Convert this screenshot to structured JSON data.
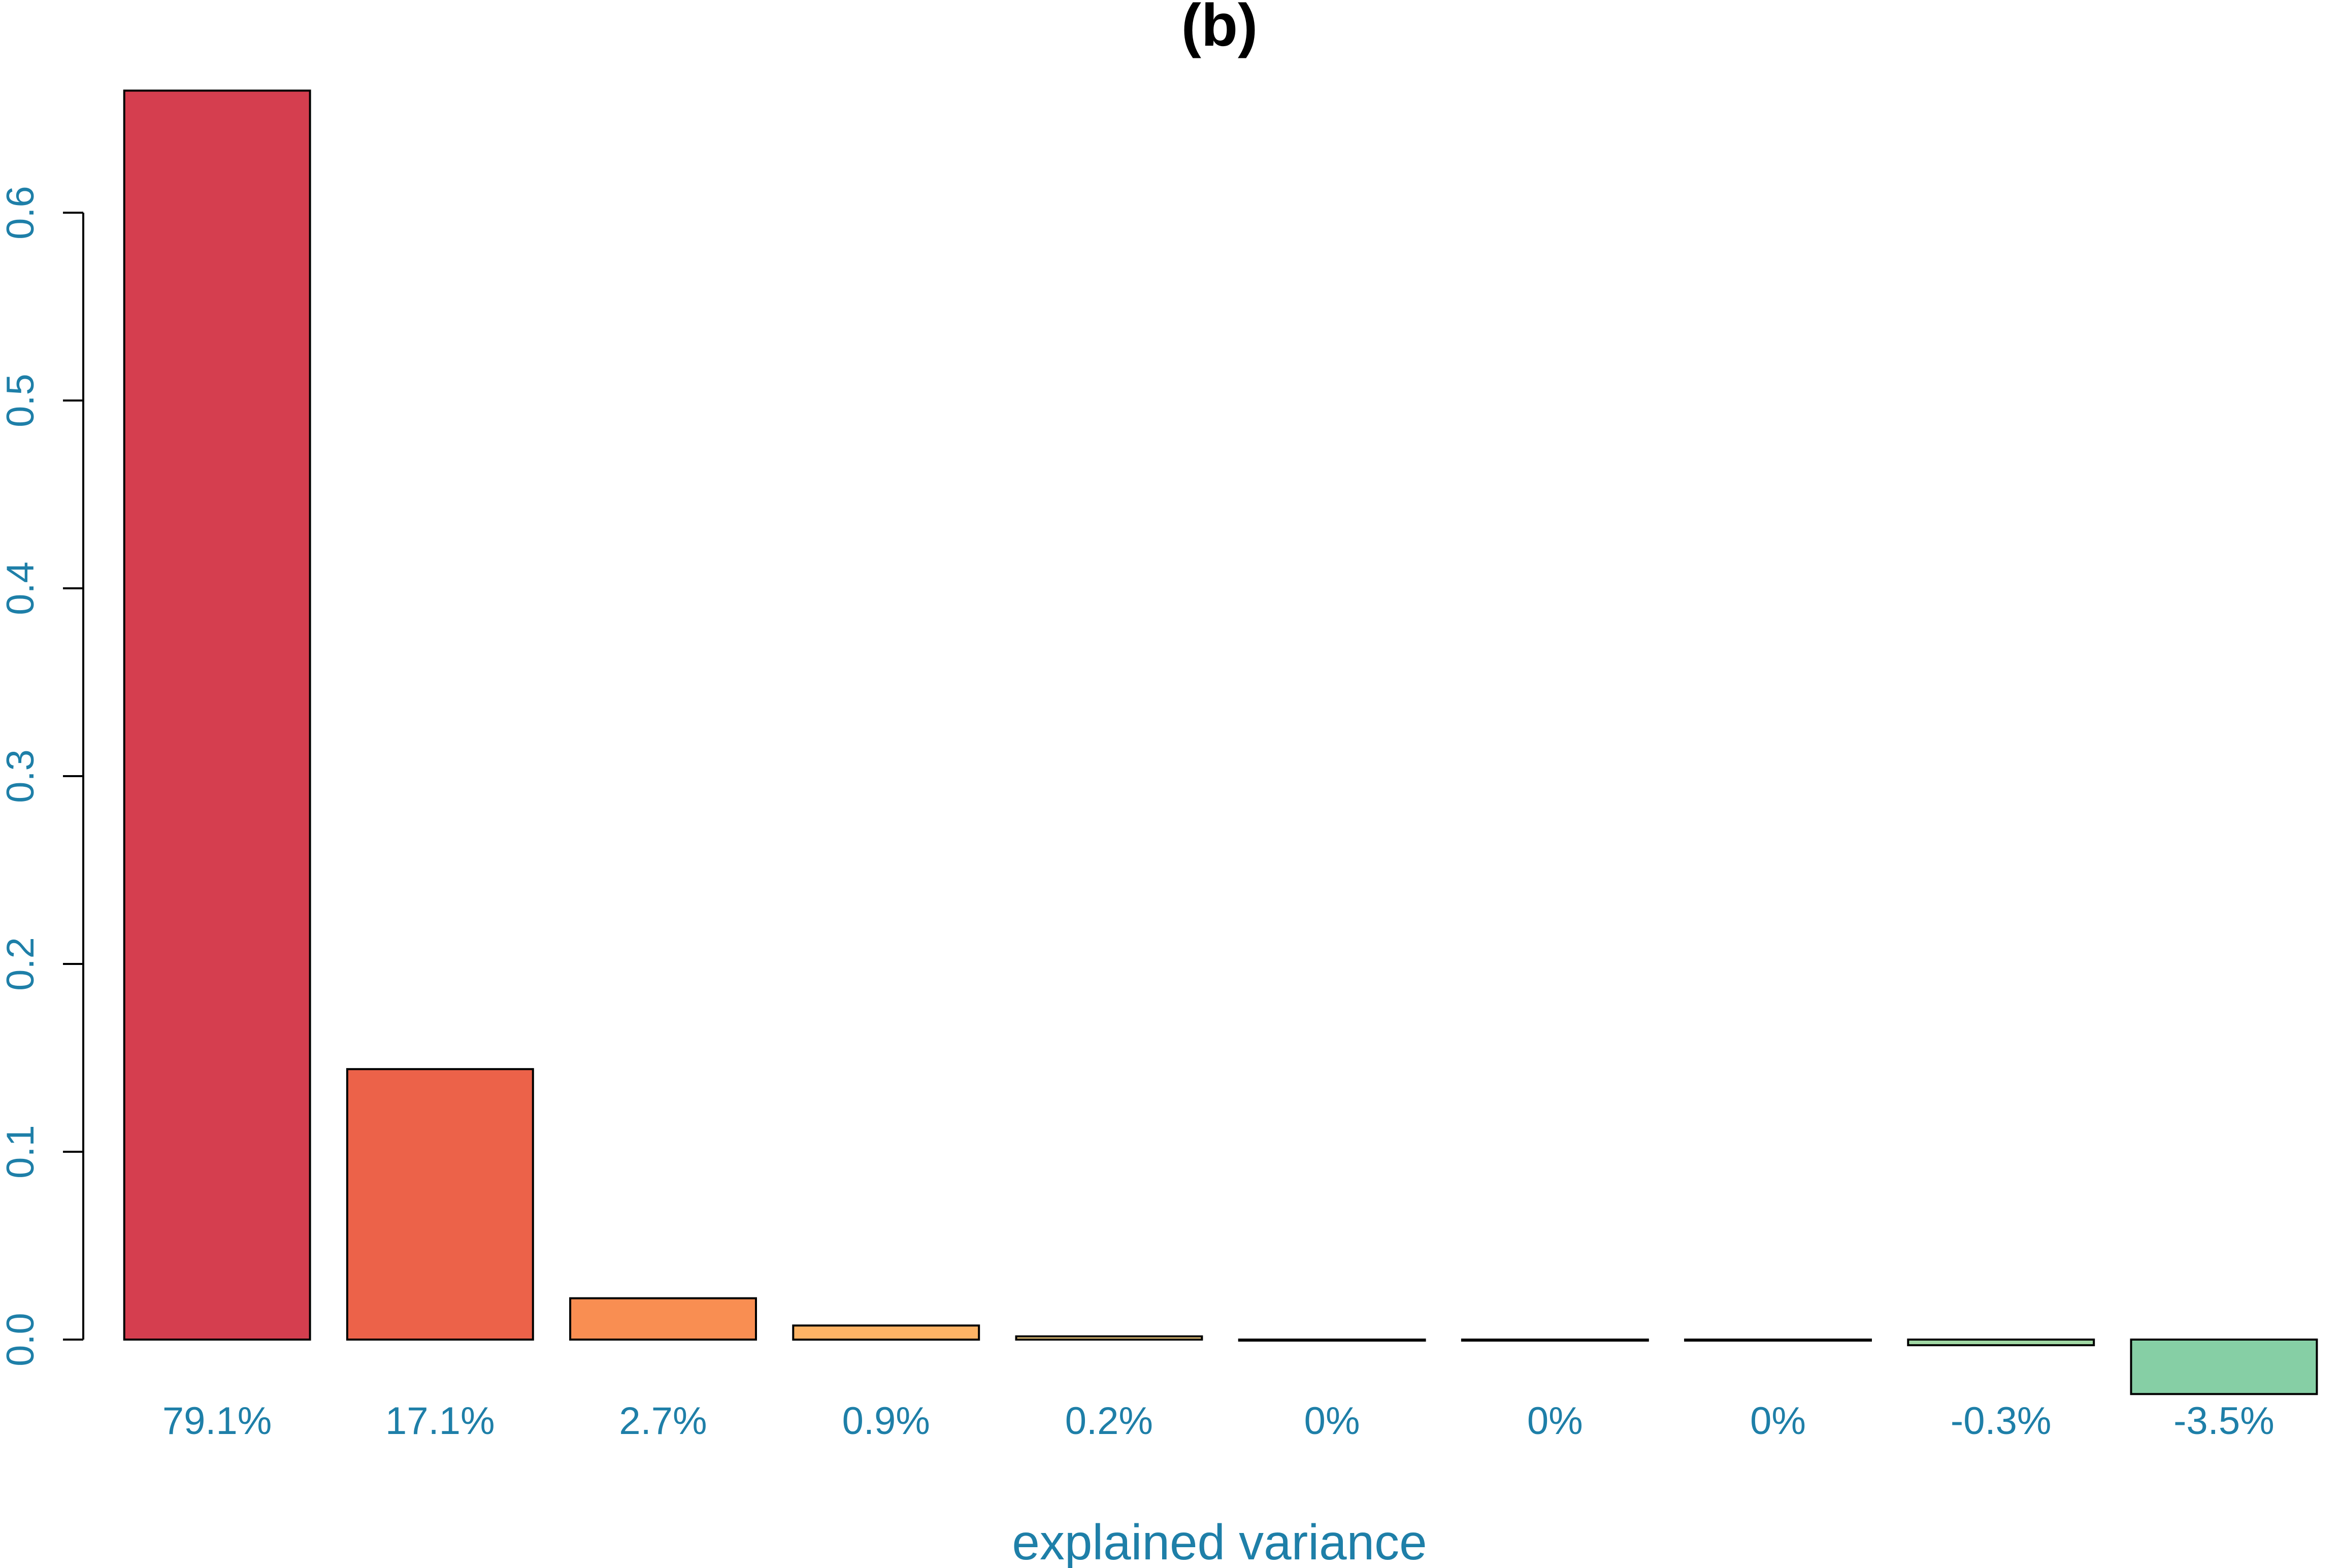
{
  "chart_data": {
    "type": "bar",
    "title": "(b)",
    "xlabel": "explained variance",
    "ylabel": "",
    "ylim": [
      -0.03,
      0.67
    ],
    "yticks": [
      0.0,
      0.1,
      0.2,
      0.3,
      0.4,
      0.5,
      0.6
    ],
    "ytick_labels": [
      "0.0",
      "0.1",
      "0.2",
      "0.3",
      "0.4",
      "0.5",
      "0.6"
    ],
    "categories": [
      "79.1%",
      "17.1%",
      "2.7%",
      "0.9%",
      "0.2%",
      "0%",
      "0%",
      "0%",
      "-0.3%",
      "-3.5%"
    ],
    "values": [
      0.665,
      0.144,
      0.022,
      0.0075,
      0.0017,
      0.0,
      0.0,
      0.0,
      -0.003,
      -0.029
    ],
    "bar_colors": [
      "#D53E4F",
      "#EC6249",
      "#F98E52",
      "#FDB365",
      "#FED884",
      "#FFFFBF",
      "#E6F598",
      "#C2E5A0",
      "#A0D8A4",
      "#86CFA5"
    ],
    "label_color": "#1E7FA8",
    "grid": false,
    "legend": "none"
  }
}
